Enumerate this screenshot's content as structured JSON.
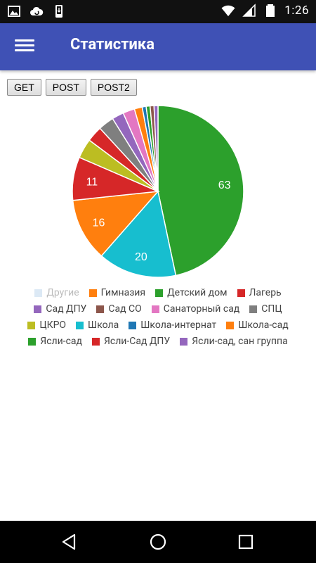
{
  "status_bar": {
    "time": "1:26",
    "icons_left": [
      "image-icon",
      "cloud-sync-icon",
      "phone-download-icon"
    ],
    "icons_right": [
      "wifi-icon",
      "cellular-signal-icon",
      "battery-icon"
    ]
  },
  "app_bar": {
    "title": "Статистика",
    "menu_icon": "hamburger-menu-icon"
  },
  "buttons": [
    "GET",
    "POST",
    "POST2"
  ],
  "chart_data": {
    "type": "pie",
    "start_angle_deg": 0,
    "direction": "clockwise",
    "slices": [
      {
        "label": "Ясли-сад",
        "value": 63,
        "color": "#2CA02C",
        "show_label": true
      },
      {
        "label": "Школа",
        "value": 20,
        "color": "#17BECF",
        "show_label": true
      },
      {
        "label": "Школа-сад",
        "value": 16,
        "color": "#FF7F0E",
        "show_label": true
      },
      {
        "label": "Лагерь",
        "value": 11,
        "color": "#D62728",
        "show_label": true
      },
      {
        "label": "ЦКРО",
        "value": 5,
        "color": "#BCBD22",
        "show_label": false
      },
      {
        "label": "Ясли-Сад ДПУ",
        "value": 4,
        "color": "#D62728",
        "show_label": false
      },
      {
        "label": "СПЦ",
        "value": 4,
        "color": "#7F7F7F",
        "show_label": false
      },
      {
        "label": "Сад ДПУ",
        "value": 3,
        "color": "#9467BD",
        "show_label": false
      },
      {
        "label": "Санаторный сад",
        "value": 3,
        "color": "#E377C2",
        "show_label": false
      },
      {
        "label": "Гимназия",
        "value": 2,
        "color": "#FF7F0E",
        "show_label": false
      },
      {
        "label": "Школа-интернат",
        "value": 1,
        "color": "#1F77B4",
        "show_label": false
      },
      {
        "label": "Детский дом",
        "value": 1,
        "color": "#2CA02C",
        "show_label": false
      },
      {
        "label": "Сад СО",
        "value": 1,
        "color": "#8C564B",
        "show_label": false
      },
      {
        "label": "Ясли-сад, сан группа",
        "value": 1,
        "color": "#9467BD",
        "show_label": false
      }
    ],
    "legend": [
      {
        "label": "Другие",
        "color": "#DCE9F5",
        "disabled": true
      },
      {
        "label": "Гимназия",
        "color": "#FF7F0E",
        "disabled": false
      },
      {
        "label": "Детский дом",
        "color": "#2CA02C",
        "disabled": false
      },
      {
        "label": "Лагерь",
        "color": "#D62728",
        "disabled": false
      },
      {
        "label": "Сад ДПУ",
        "color": "#9467BD",
        "disabled": false
      },
      {
        "label": "Сад СО",
        "color": "#8C564B",
        "disabled": false
      },
      {
        "label": "Санаторный сад",
        "color": "#E377C2",
        "disabled": false
      },
      {
        "label": "СПЦ",
        "color": "#7F7F7F",
        "disabled": false
      },
      {
        "label": "ЦКРО",
        "color": "#BCBD22",
        "disabled": false
      },
      {
        "label": "Школа",
        "color": "#17BECF",
        "disabled": false
      },
      {
        "label": "Школа-интернат",
        "color": "#1F77B4",
        "disabled": false
      },
      {
        "label": "Школа-сад",
        "color": "#FF7F0E",
        "disabled": false
      },
      {
        "label": "Ясли-сад",
        "color": "#2CA02C",
        "disabled": false
      },
      {
        "label": "Ясли-Сад ДПУ",
        "color": "#D62728",
        "disabled": false
      },
      {
        "label": "Ясли-сад, сан группа",
        "color": "#9467BD",
        "disabled": false
      }
    ],
    "legend_placement": "bottom"
  },
  "nav_bar": {
    "icons": [
      "back-icon",
      "home-icon",
      "recents-icon"
    ]
  }
}
